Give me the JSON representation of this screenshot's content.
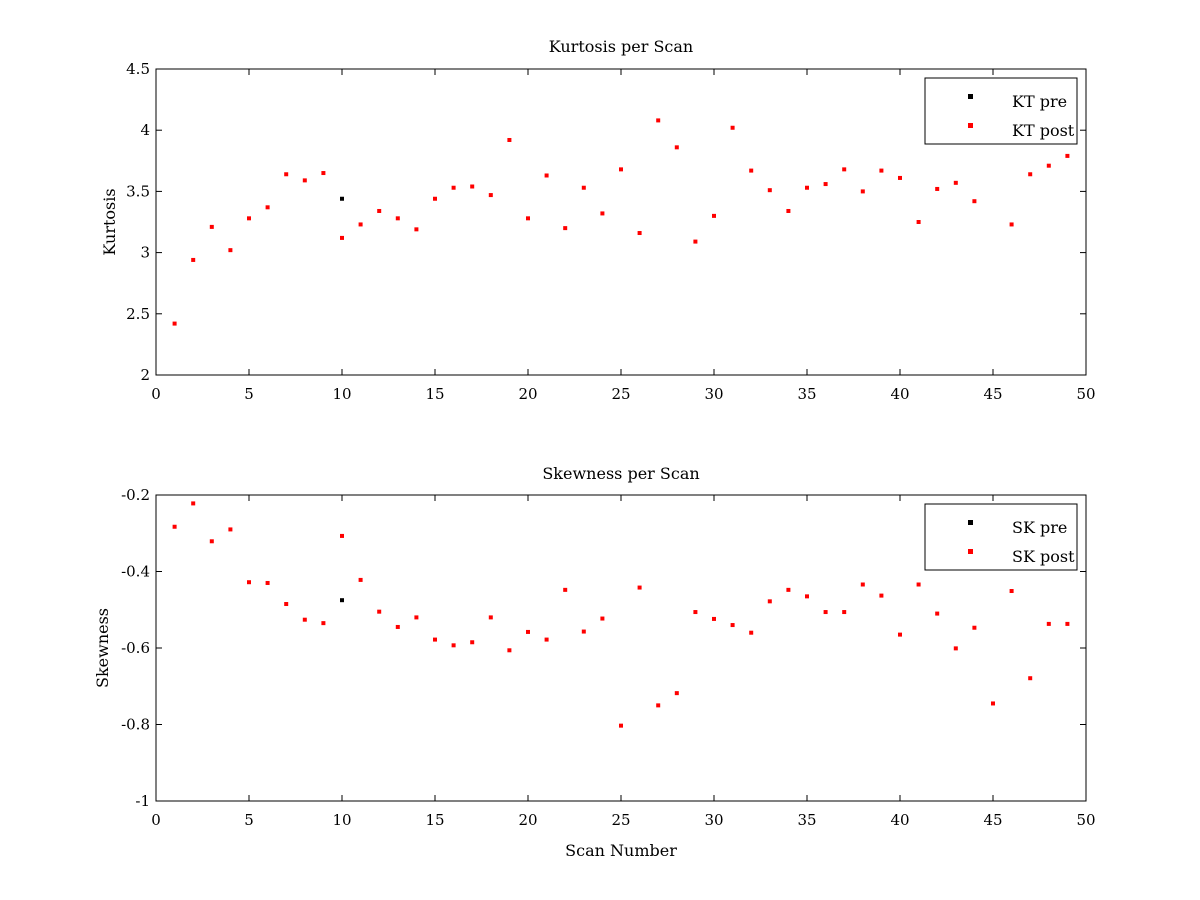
{
  "chart_data": [
    {
      "type": "scatter",
      "title": "Kurtosis per Scan",
      "xlabel": "",
      "ylabel": "Kurtosis",
      "xlim": [
        0,
        50
      ],
      "ylim": [
        2,
        4.5
      ],
      "xticks": [
        0,
        5,
        10,
        15,
        20,
        25,
        30,
        35,
        40,
        45,
        50
      ],
      "yticks": [
        2,
        2.5,
        3,
        3.5,
        4,
        4.5
      ],
      "ytick_labels": [
        "2",
        "2.5",
        "3",
        "3.5",
        "4",
        "4.5"
      ],
      "grid": false,
      "legend_position": "top-right",
      "series": [
        {
          "name": "KT pre",
          "color": "#000000",
          "x": [
            10
          ],
          "y": [
            3.44
          ]
        },
        {
          "name": "KT post",
          "color": "#ff0000",
          "x": [
            1,
            2,
            3,
            4,
            5,
            6,
            7,
            8,
            9,
            10,
            11,
            12,
            13,
            14,
            15,
            16,
            17,
            18,
            19,
            20,
            21,
            22,
            23,
            24,
            25,
            26,
            27,
            28,
            29,
            30,
            31,
            32,
            33,
            34,
            35,
            36,
            37,
            38,
            39,
            40,
            41,
            42,
            43,
            44,
            46,
            47,
            48,
            49
          ],
          "y": [
            2.42,
            2.94,
            3.21,
            3.02,
            3.28,
            3.37,
            3.64,
            3.59,
            3.65,
            3.12,
            3.23,
            3.34,
            3.28,
            3.19,
            3.44,
            3.53,
            3.54,
            3.47,
            3.92,
            3.28,
            3.63,
            3.2,
            3.53,
            3.32,
            3.68,
            3.16,
            4.08,
            3.86,
            3.09,
            3.3,
            4.02,
            3.67,
            3.51,
            3.34,
            3.53,
            3.56,
            3.68,
            3.5,
            3.67,
            3.61,
            3.25,
            3.52,
            3.57,
            3.42,
            3.23,
            3.64,
            3.71,
            3.79
          ]
        }
      ]
    },
    {
      "type": "scatter",
      "title": "Skewness per Scan",
      "xlabel": "Scan Number",
      "ylabel": "Skewness",
      "xlim": [
        0,
        50
      ],
      "ylim": [
        -1,
        -0.2
      ],
      "xticks": [
        0,
        5,
        10,
        15,
        20,
        25,
        30,
        35,
        40,
        45,
        50
      ],
      "yticks": [
        -1,
        -0.8,
        -0.6,
        -0.4,
        -0.2
      ],
      "ytick_labels": [
        "-1",
        "-0.8",
        "-0.6",
        "-0.4",
        "-0.2"
      ],
      "grid": false,
      "legend_position": "top-right",
      "series": [
        {
          "name": "SK pre",
          "color": "#000000",
          "x": [
            10
          ],
          "y": [
            -0.475
          ]
        },
        {
          "name": "SK post",
          "color": "#ff0000",
          "x": [
            1,
            2,
            3,
            4,
            5,
            6,
            7,
            8,
            9,
            10,
            11,
            12,
            13,
            14,
            15,
            16,
            17,
            18,
            19,
            20,
            21,
            22,
            23,
            24,
            25,
            26,
            27,
            28,
            29,
            30,
            31,
            32,
            33,
            34,
            35,
            36,
            37,
            38,
            39,
            40,
            41,
            42,
            43,
            44,
            45,
            46,
            47,
            48,
            49
          ],
          "y": [
            -0.283,
            -0.222,
            -0.321,
            -0.29,
            -0.428,
            -0.43,
            -0.485,
            -0.526,
            -0.535,
            -0.307,
            -0.422,
            -0.505,
            -0.545,
            -0.52,
            -0.578,
            -0.593,
            -0.585,
            -0.52,
            -0.606,
            -0.558,
            -0.578,
            -0.448,
            -0.557,
            -0.523,
            -0.803,
            -0.442,
            -0.75,
            -0.718,
            -0.506,
            -0.524,
            -0.54,
            -0.56,
            -0.478,
            -0.448,
            -0.465,
            -0.506,
            -0.506,
            -0.434,
            -0.463,
            -0.565,
            -0.434,
            -0.51,
            -0.601,
            -0.547,
            -0.745,
            -0.451,
            -0.679,
            -0.537,
            -0.537
          ]
        }
      ]
    }
  ]
}
